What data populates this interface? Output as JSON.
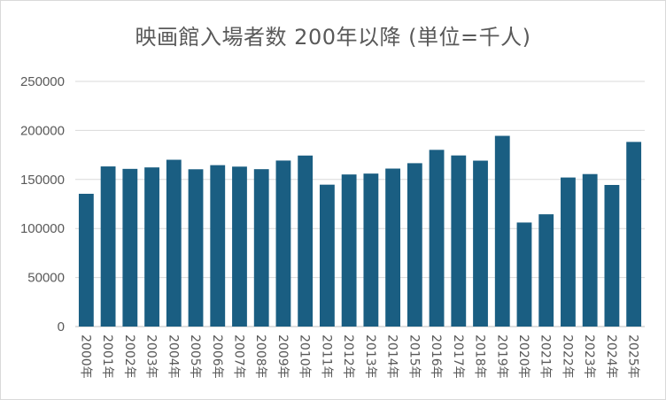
{
  "chart_data": {
    "type": "bar",
    "title": "映画館入場者数 200年以降 (単位=千人)",
    "xlabel": "",
    "ylabel": "",
    "categories": [
      "2000年",
      "2001年",
      "2002年",
      "2003年",
      "2004年",
      "2005年",
      "2006年",
      "2007年",
      "2008年",
      "2009年",
      "2010年",
      "2011年",
      "2012年",
      "2013年",
      "2014年",
      "2015年",
      "2016年",
      "2017年",
      "2018年",
      "2019年",
      "2020年",
      "2021年",
      "2022年",
      "2023年",
      "2024年",
      "2025年"
    ],
    "values": [
      135400,
      163300,
      160800,
      162300,
      170100,
      160400,
      164600,
      163100,
      160500,
      169300,
      174400,
      144700,
      155100,
      156000,
      161100,
      166600,
      180200,
      174500,
      169200,
      194500,
      106100,
      114500,
      152000,
      155500,
      144400,
      188300
    ],
    "ylim": [
      0,
      250000
    ],
    "yticks": [
      0,
      50000,
      100000,
      150000,
      200000,
      250000
    ],
    "ytick_labels": [
      "0",
      "50000",
      "100000",
      "150000",
      "200000",
      "250000"
    ],
    "grid": true,
    "legend": "none",
    "colors": {
      "bar": "#1a5e82",
      "grid": "#d9d9d9",
      "text": "#595959"
    }
  }
}
